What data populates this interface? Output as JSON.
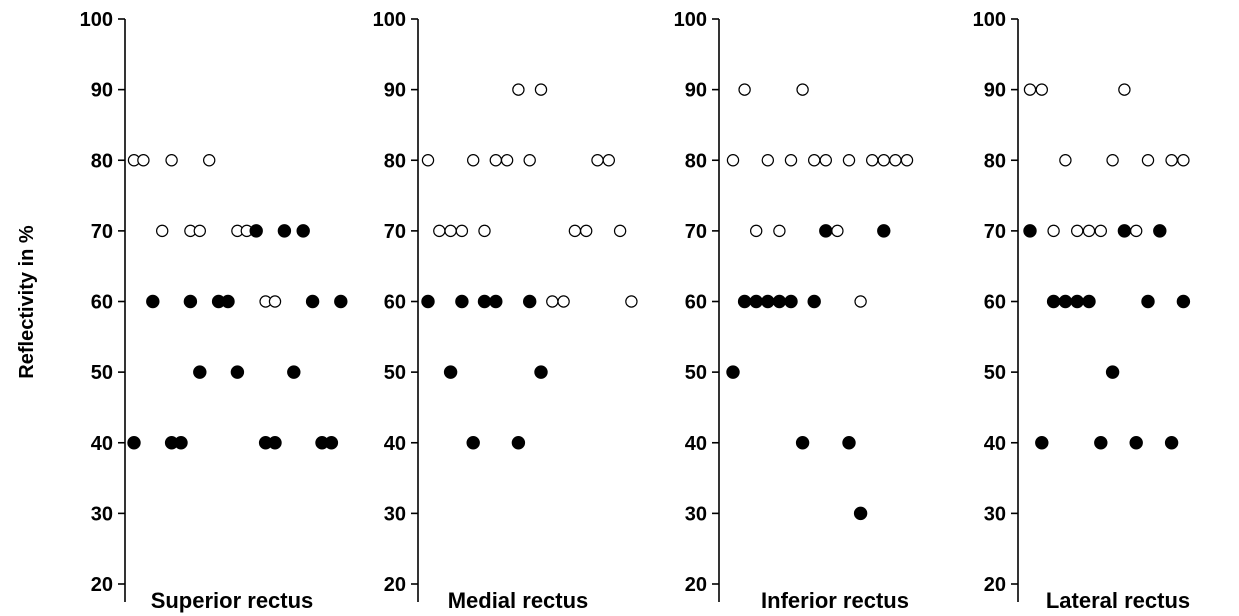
{
  "ylabel": "Reflectivity in %",
  "chart_data": [
    {
      "type": "scatter",
      "xlabel": "Superior rectus",
      "ylim": [
        20,
        100
      ],
      "yticks": [
        20,
        30,
        40,
        50,
        60,
        70,
        80,
        90,
        100
      ],
      "series": [
        {
          "marker": "open",
          "color": "#000000",
          "points": [
            {
              "x": 1,
              "y": 80
            },
            {
              "x": 2,
              "y": 80
            },
            {
              "x": 4,
              "y": 70
            },
            {
              "x": 5,
              "y": 80
            },
            {
              "x": 7,
              "y": 70
            },
            {
              "x": 8,
              "y": 70
            },
            {
              "x": 9,
              "y": 80
            },
            {
              "x": 12,
              "y": 70
            },
            {
              "x": 13,
              "y": 70
            },
            {
              "x": 15,
              "y": 60
            },
            {
              "x": 16,
              "y": 60
            }
          ]
        },
        {
          "marker": "filled",
          "color": "#000000",
          "points": [
            {
              "x": 1,
              "y": 40
            },
            {
              "x": 3,
              "y": 60
            },
            {
              "x": 5,
              "y": 40
            },
            {
              "x": 6,
              "y": 40
            },
            {
              "x": 7,
              "y": 60
            },
            {
              "x": 8,
              "y": 50
            },
            {
              "x": 10,
              "y": 60
            },
            {
              "x": 11,
              "y": 60
            },
            {
              "x": 12,
              "y": 50
            },
            {
              "x": 14,
              "y": 70
            },
            {
              "x": 15,
              "y": 40
            },
            {
              "x": 16,
              "y": 40
            },
            {
              "x": 17,
              "y": 70
            },
            {
              "x": 18,
              "y": 50
            },
            {
              "x": 19,
              "y": 70
            },
            {
              "x": 20,
              "y": 60
            },
            {
              "x": 21,
              "y": 40
            },
            {
              "x": 22,
              "y": 40
            },
            {
              "x": 23,
              "y": 60
            }
          ]
        }
      ]
    },
    {
      "type": "scatter",
      "xlabel": "Medial rectus",
      "ylim": [
        20,
        100
      ],
      "yticks": [
        20,
        30,
        40,
        50,
        60,
        70,
        80,
        90,
        100
      ],
      "series": [
        {
          "marker": "open",
          "color": "#000000",
          "points": [
            {
              "x": 1,
              "y": 80
            },
            {
              "x": 2,
              "y": 70
            },
            {
              "x": 3,
              "y": 70
            },
            {
              "x": 4,
              "y": 70
            },
            {
              "x": 5,
              "y": 80
            },
            {
              "x": 6,
              "y": 70
            },
            {
              "x": 7,
              "y": 80
            },
            {
              "x": 8,
              "y": 80
            },
            {
              "x": 9,
              "y": 90
            },
            {
              "x": 10,
              "y": 80
            },
            {
              "x": 11,
              "y": 90
            },
            {
              "x": 12,
              "y": 60
            },
            {
              "x": 13,
              "y": 60
            },
            {
              "x": 14,
              "y": 70
            },
            {
              "x": 15,
              "y": 70
            },
            {
              "x": 16,
              "y": 80
            },
            {
              "x": 17,
              "y": 80
            },
            {
              "x": 18,
              "y": 70
            },
            {
              "x": 19,
              "y": 60
            }
          ]
        },
        {
          "marker": "filled",
          "color": "#000000",
          "points": [
            {
              "x": 1,
              "y": 60
            },
            {
              "x": 3,
              "y": 50
            },
            {
              "x": 4,
              "y": 60
            },
            {
              "x": 5,
              "y": 40
            },
            {
              "x": 6,
              "y": 60
            },
            {
              "x": 7,
              "y": 60
            },
            {
              "x": 9,
              "y": 40
            },
            {
              "x": 10,
              "y": 60
            },
            {
              "x": 11,
              "y": 50
            }
          ]
        }
      ]
    },
    {
      "type": "scatter",
      "xlabel": "Inferior rectus",
      "ylim": [
        20,
        100
      ],
      "yticks": [
        20,
        30,
        40,
        50,
        60,
        70,
        80,
        90,
        100
      ],
      "series": [
        {
          "marker": "open",
          "color": "#000000",
          "points": [
            {
              "x": 1,
              "y": 80
            },
            {
              "x": 2,
              "y": 90
            },
            {
              "x": 3,
              "y": 70
            },
            {
              "x": 4,
              "y": 80
            },
            {
              "x": 5,
              "y": 70
            },
            {
              "x": 6,
              "y": 80
            },
            {
              "x": 7,
              "y": 90
            },
            {
              "x": 8,
              "y": 80
            },
            {
              "x": 9,
              "y": 80
            },
            {
              "x": 10,
              "y": 70
            },
            {
              "x": 11,
              "y": 80
            },
            {
              "x": 12,
              "y": 60
            },
            {
              "x": 13,
              "y": 80
            },
            {
              "x": 14,
              "y": 80
            },
            {
              "x": 15,
              "y": 80
            },
            {
              "x": 16,
              "y": 80
            }
          ]
        },
        {
          "marker": "filled",
          "color": "#000000",
          "points": [
            {
              "x": 1,
              "y": 50
            },
            {
              "x": 2,
              "y": 60
            },
            {
              "x": 3,
              "y": 60
            },
            {
              "x": 4,
              "y": 60
            },
            {
              "x": 5,
              "y": 60
            },
            {
              "x": 6,
              "y": 60
            },
            {
              "x": 7,
              "y": 40
            },
            {
              "x": 8,
              "y": 60
            },
            {
              "x": 9,
              "y": 70
            },
            {
              "x": 11,
              "y": 40
            },
            {
              "x": 12,
              "y": 30
            },
            {
              "x": 14,
              "y": 70
            }
          ]
        }
      ]
    },
    {
      "type": "scatter",
      "xlabel": "Lateral rectus",
      "ylim": [
        20,
        100
      ],
      "yticks": [
        20,
        30,
        40,
        50,
        60,
        70,
        80,
        90,
        100
      ],
      "series": [
        {
          "marker": "open",
          "color": "#000000",
          "points": [
            {
              "x": 1,
              "y": 90
            },
            {
              "x": 2,
              "y": 90
            },
            {
              "x": 3,
              "y": 70
            },
            {
              "x": 4,
              "y": 80
            },
            {
              "x": 5,
              "y": 70
            },
            {
              "x": 6,
              "y": 70
            },
            {
              "x": 7,
              "y": 70
            },
            {
              "x": 8,
              "y": 80
            },
            {
              "x": 9,
              "y": 90
            },
            {
              "x": 10,
              "y": 70
            },
            {
              "x": 11,
              "y": 80
            },
            {
              "x": 12,
              "y": 70
            },
            {
              "x": 13,
              "y": 80
            },
            {
              "x": 14,
              "y": 80
            }
          ]
        },
        {
          "marker": "filled",
          "color": "#000000",
          "points": [
            {
              "x": 1,
              "y": 70
            },
            {
              "x": 2,
              "y": 40
            },
            {
              "x": 3,
              "y": 60
            },
            {
              "x": 4,
              "y": 60
            },
            {
              "x": 5,
              "y": 60
            },
            {
              "x": 6,
              "y": 60
            },
            {
              "x": 7,
              "y": 40
            },
            {
              "x": 8,
              "y": 50
            },
            {
              "x": 9,
              "y": 70
            },
            {
              "x": 10,
              "y": 40
            },
            {
              "x": 11,
              "y": 60
            },
            {
              "x": 12,
              "y": 70
            },
            {
              "x": 13,
              "y": 40
            },
            {
              "x": 14,
              "y": 60
            }
          ]
        }
      ]
    }
  ]
}
